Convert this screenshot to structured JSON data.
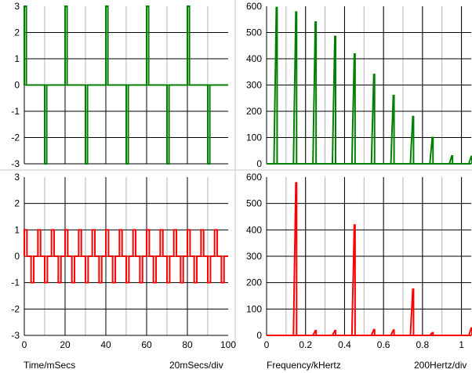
{
  "footer": {
    "time_label": "Time/mSecs",
    "time_scale": "20mSecs/div",
    "freq_label": "Frequency/kHertz",
    "freq_scale": "200Hertz/div"
  },
  "colors": {
    "top_trace": "#008000",
    "bottom_trace": "#ff0000",
    "major_grid": "#000000",
    "minor_grid": "#b4b4b4",
    "divider": "#c8c8c8"
  },
  "chart_data": [
    {
      "type": "line",
      "name": "top-left time signal",
      "xlim": [
        0,
        100
      ],
      "ylim": [
        -3,
        3
      ],
      "xticks": [],
      "yticks": [
        3,
        2,
        1,
        0,
        -1,
        -2,
        -3
      ],
      "series": [
        {
          "color": "#008000",
          "x": [
            0,
            0,
            1,
            1,
            10,
            10,
            11,
            11,
            20,
            20,
            21,
            21,
            30,
            30,
            31,
            31,
            40,
            40,
            41,
            41,
            50,
            50,
            51,
            51,
            60,
            60,
            61,
            61,
            70,
            70,
            71,
            71,
            80,
            80,
            81,
            81,
            90,
            90,
            91,
            91,
            100
          ],
          "y": [
            0,
            3,
            3,
            0,
            0,
            -3,
            -3,
            0,
            0,
            3,
            3,
            0,
            0,
            -3,
            -3,
            0,
            0,
            3,
            3,
            0,
            0,
            -3,
            -3,
            0,
            0,
            3,
            3,
            0,
            0,
            -3,
            -3,
            0,
            0,
            3,
            3,
            0,
            0,
            -3,
            -3,
            0,
            0
          ]
        }
      ]
    },
    {
      "type": "line",
      "name": "top-right spectrum",
      "xlim": [
        0,
        1.05
      ],
      "ylim": [
        0,
        600
      ],
      "xticks": [],
      "yticks": [
        600,
        500,
        400,
        300,
        200,
        100,
        0
      ],
      "peaks": [
        {
          "f": 0.05,
          "a": 595
        },
        {
          "f": 0.15,
          "a": 578
        },
        {
          "f": 0.25,
          "a": 540
        },
        {
          "f": 0.35,
          "a": 485
        },
        {
          "f": 0.45,
          "a": 418
        },
        {
          "f": 0.55,
          "a": 340
        },
        {
          "f": 0.65,
          "a": 260
        },
        {
          "f": 0.75,
          "a": 180
        },
        {
          "f": 0.85,
          "a": 100
        },
        {
          "f": 0.95,
          "a": 30
        },
        {
          "f": 1.05,
          "a": 28
        }
      ],
      "color": "#008000"
    },
    {
      "type": "line",
      "name": "bottom-left time signal",
      "xlim": [
        0,
        100
      ],
      "ylim": [
        -3,
        3
      ],
      "xticks": [
        0,
        20,
        40,
        60,
        80,
        100
      ],
      "yticks": [
        3,
        2,
        1,
        0,
        -1,
        -2,
        -3
      ],
      "series": [
        {
          "color": "#ff0000",
          "pattern": "alternating +1 / -1 pulses every 3.33 ms, width ~1.3 ms",
          "period_ms": 6.667,
          "pulse_width_ms": 1.3,
          "amplitude": 1
        }
      ]
    },
    {
      "type": "line",
      "name": "bottom-right spectrum",
      "xlim": [
        0,
        1.05
      ],
      "ylim": [
        0,
        600
      ],
      "xticks": [
        0,
        0.2,
        0.4,
        0.6,
        0.8,
        1
      ],
      "yticks": [
        600,
        500,
        400,
        300,
        200,
        100,
        0
      ],
      "peaks": [
        {
          "f": 0.15,
          "a": 578
        },
        {
          "f": 0.25,
          "a": 18
        },
        {
          "f": 0.35,
          "a": 18
        },
        {
          "f": 0.45,
          "a": 418
        },
        {
          "f": 0.55,
          "a": 22
        },
        {
          "f": 0.65,
          "a": 20
        },
        {
          "f": 0.75,
          "a": 175
        },
        {
          "f": 0.85,
          "a": 10
        },
        {
          "f": 1.05,
          "a": 28
        }
      ],
      "color": "#ff0000"
    }
  ]
}
